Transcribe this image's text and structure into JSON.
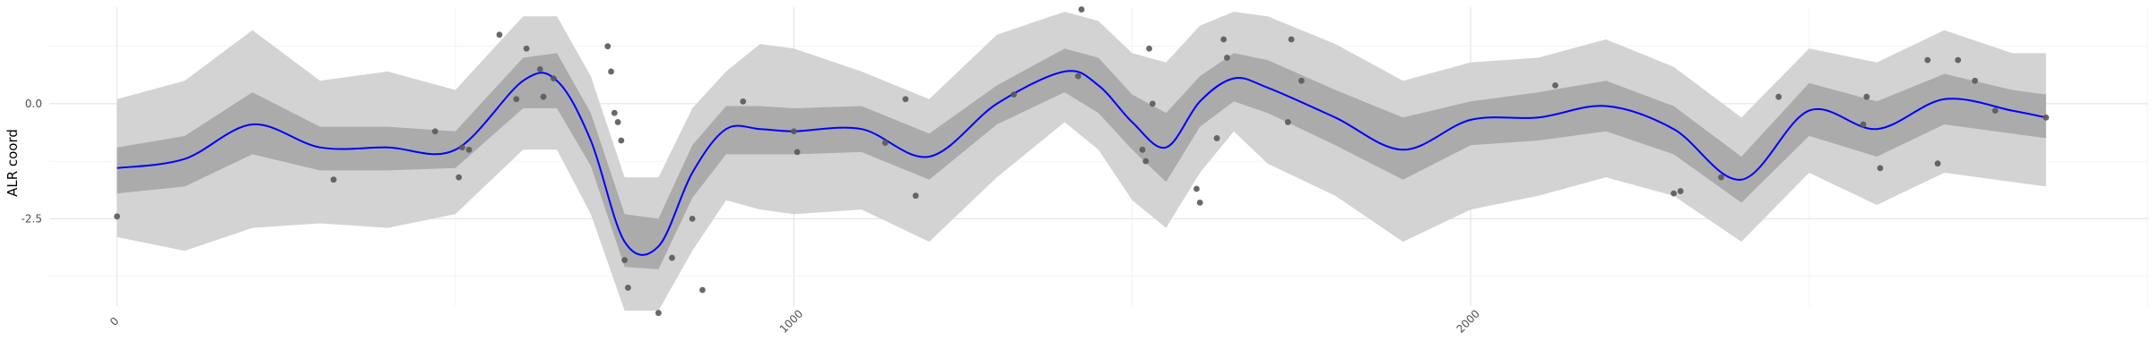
{
  "chart_data": {
    "type": "line",
    "title": "",
    "xlabel": "",
    "ylabel": "ALR coord",
    "xlim": [
      -100,
      3000
    ],
    "ylim": [
      -4.4,
      2.1
    ],
    "x_ticks": [
      0,
      1000,
      2000
    ],
    "y_ticks": [
      -2.5,
      0.0
    ],
    "grid": true,
    "legend": "none",
    "colors": {
      "mean_line": "#0000ff",
      "inner_band": "#ababab",
      "outer_band": "#d3d3d3",
      "points": "#595959"
    },
    "bands": {
      "x": [
        0,
        100,
        200,
        300,
        400,
        500,
        600,
        650,
        700,
        750,
        800,
        850,
        900,
        950,
        1000,
        1100,
        1200,
        1300,
        1400,
        1450,
        1500,
        1550,
        1600,
        1650,
        1700,
        1800,
        1900,
        2000,
        2100,
        2200,
        2300,
        2400,
        2500,
        2600,
        2700,
        2800,
        2850
      ],
      "mean": [
        -1.4,
        -1.2,
        -0.45,
        -0.95,
        -0.95,
        -1.0,
        0.5,
        0.5,
        -0.8,
        -3.0,
        -3.1,
        -1.5,
        -0.55,
        -0.55,
        -0.6,
        -0.55,
        -1.15,
        0.0,
        0.7,
        0.4,
        -0.4,
        -0.95,
        0.05,
        0.55,
        0.35,
        -0.3,
        -1.0,
        -0.35,
        -0.3,
        -0.05,
        -0.55,
        -1.65,
        -0.15,
        -0.55,
        0.1,
        -0.15,
        -0.3
      ],
      "inner_upper": [
        -0.95,
        -0.7,
        0.25,
        -0.5,
        -0.5,
        -0.6,
        1.0,
        1.1,
        -0.2,
        -2.4,
        -2.5,
        -0.9,
        -0.05,
        -0.05,
        -0.1,
        -0.05,
        -0.65,
        0.4,
        1.2,
        1.0,
        0.2,
        -0.2,
        0.6,
        1.1,
        0.95,
        0.3,
        -0.3,
        0.05,
        0.25,
        0.5,
        -0.05,
        -1.15,
        0.45,
        0.05,
        0.65,
        0.3,
        0.2
      ],
      "inner_lower": [
        -1.95,
        -1.8,
        -1.1,
        -1.45,
        -1.45,
        -1.4,
        -0.1,
        -0.1,
        -1.35,
        -3.55,
        -3.6,
        -2.05,
        -1.1,
        -1.1,
        -1.1,
        -1.05,
        -1.65,
        -0.45,
        0.25,
        -0.2,
        -1.0,
        -1.7,
        -0.5,
        0.05,
        -0.2,
        -0.9,
        -1.65,
        -0.9,
        -0.8,
        -0.6,
        -1.1,
        -2.15,
        -0.7,
        -1.15,
        -0.45,
        -0.65,
        -0.75
      ],
      "outer_upper": [
        0.1,
        0.5,
        1.6,
        0.5,
        0.7,
        0.3,
        1.9,
        1.9,
        0.6,
        -1.6,
        -1.6,
        -0.1,
        0.7,
        1.3,
        1.2,
        0.7,
        0.1,
        1.5,
        2.0,
        1.8,
        1.1,
        0.9,
        1.7,
        2.0,
        1.9,
        1.3,
        0.5,
        0.9,
        1.0,
        1.4,
        0.8,
        -0.3,
        1.2,
        0.9,
        1.6,
        1.1,
        1.1
      ],
      "outer_lower": [
        -2.9,
        -3.2,
        -2.7,
        -2.6,
        -2.7,
        -2.4,
        -1.0,
        -1.0,
        -2.4,
        -4.5,
        -4.5,
        -3.2,
        -2.1,
        -2.3,
        -2.4,
        -2.3,
        -3.0,
        -1.6,
        -0.4,
        -1.0,
        -2.1,
        -2.7,
        -1.5,
        -0.6,
        -1.3,
        -2.0,
        -3.0,
        -2.3,
        -2.0,
        -1.6,
        -2.0,
        -3.0,
        -1.5,
        -2.2,
        -1.5,
        -1.7,
        -1.8
      ]
    },
    "points": [
      {
        "x": 0,
        "y": -2.45
      },
      {
        "x": 320,
        "y": -1.65
      },
      {
        "x": 470,
        "y": -0.6
      },
      {
        "x": 505,
        "y": -1.6
      },
      {
        "x": 510,
        "y": -0.95
      },
      {
        "x": 520,
        "y": -1.0
      },
      {
        "x": 565,
        "y": 1.5
      },
      {
        "x": 590,
        "y": 0.1
      },
      {
        "x": 605,
        "y": 1.2
      },
      {
        "x": 625,
        "y": 0.75
      },
      {
        "x": 630,
        "y": 0.15
      },
      {
        "x": 645,
        "y": 0.55
      },
      {
        "x": 725,
        "y": 1.25
      },
      {
        "x": 730,
        "y": 0.7
      },
      {
        "x": 735,
        "y": -0.2
      },
      {
        "x": 740,
        "y": -0.4
      },
      {
        "x": 745,
        "y": -0.8
      },
      {
        "x": 750,
        "y": -3.4
      },
      {
        "x": 755,
        "y": -4.0
      },
      {
        "x": 800,
        "y": -4.55
      },
      {
        "x": 820,
        "y": -3.35
      },
      {
        "x": 850,
        "y": -2.5
      },
      {
        "x": 865,
        "y": -4.05
      },
      {
        "x": 925,
        "y": 0.05
      },
      {
        "x": 1000,
        "y": -0.6
      },
      {
        "x": 1005,
        "y": -1.05
      },
      {
        "x": 1135,
        "y": -0.85
      },
      {
        "x": 1165,
        "y": 0.1
      },
      {
        "x": 1180,
        "y": -2.0
      },
      {
        "x": 1325,
        "y": 0.2
      },
      {
        "x": 1420,
        "y": 0.6
      },
      {
        "x": 1425,
        "y": 2.05
      },
      {
        "x": 1515,
        "y": -1.0
      },
      {
        "x": 1520,
        "y": -1.25
      },
      {
        "x": 1525,
        "y": 1.2
      },
      {
        "x": 1530,
        "y": 0.0
      },
      {
        "x": 1595,
        "y": -1.85
      },
      {
        "x": 1600,
        "y": -2.15
      },
      {
        "x": 1625,
        "y": -0.75
      },
      {
        "x": 1635,
        "y": 1.4
      },
      {
        "x": 1640,
        "y": 1.0
      },
      {
        "x": 1730,
        "y": -0.4
      },
      {
        "x": 1735,
        "y": 1.4
      },
      {
        "x": 1750,
        "y": 0.5
      },
      {
        "x": 2125,
        "y": 0.4
      },
      {
        "x": 2300,
        "y": -1.95
      },
      {
        "x": 2310,
        "y": -1.9
      },
      {
        "x": 2370,
        "y": -1.6
      },
      {
        "x": 2455,
        "y": 0.15
      },
      {
        "x": 2580,
        "y": -0.45
      },
      {
        "x": 2585,
        "y": 0.15
      },
      {
        "x": 2605,
        "y": -1.4
      },
      {
        "x": 2675,
        "y": 0.95
      },
      {
        "x": 2690,
        "y": -1.3
      },
      {
        "x": 2720,
        "y": 0.95
      },
      {
        "x": 2745,
        "y": 0.5
      },
      {
        "x": 2775,
        "y": -0.15
      },
      {
        "x": 2850,
        "y": -0.3
      }
    ]
  }
}
